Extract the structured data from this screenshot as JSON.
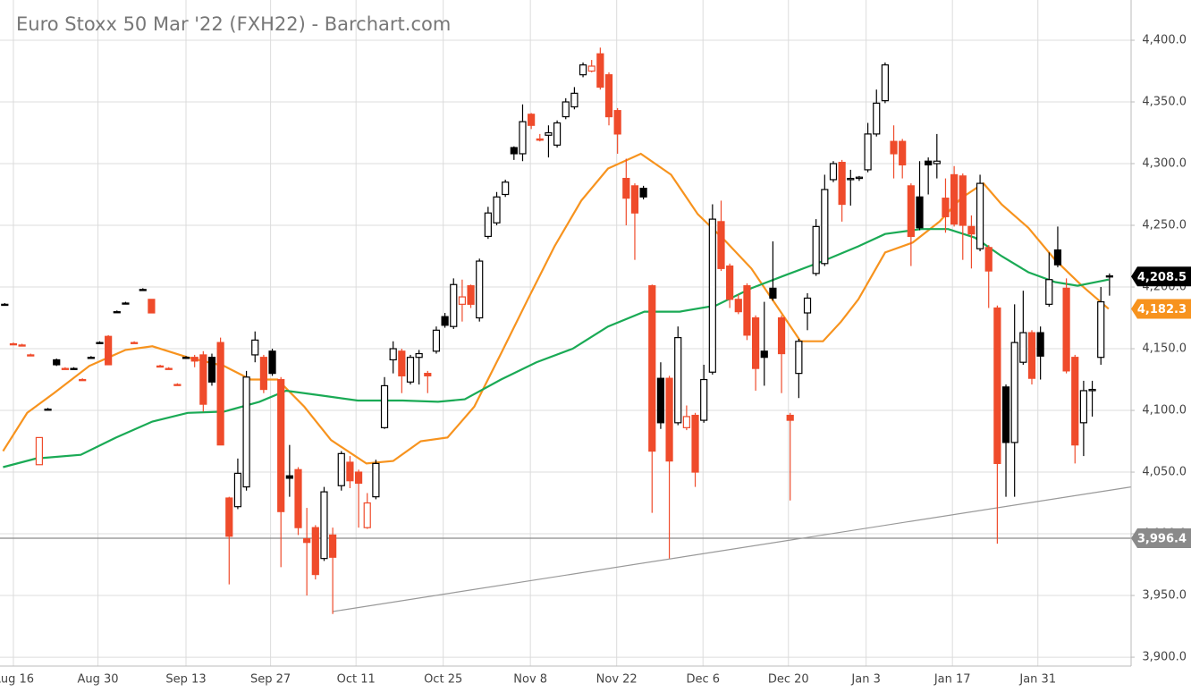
{
  "chart_data": {
    "type": "candlestick",
    "title": "Euro Stoxx 50 Mar '22 (FXH22) - Barchart.com",
    "xlim": [
      -1.55,
      129.5
    ],
    "ylim": [
      3892.8,
      4432.6
    ],
    "grid": true,
    "up_color": "#000000",
    "down_color": "#ef4b2b",
    "xticks": [
      {
        "value": 0,
        "label": "Aug 16"
      },
      {
        "value": 9.8,
        "label": "Aug 30"
      },
      {
        "value": 20,
        "label": "Sep 13"
      },
      {
        "value": 29.8,
        "label": "Sep 27"
      },
      {
        "value": 39.7,
        "label": "Oct 11"
      },
      {
        "value": 49.8,
        "label": "Oct 25"
      },
      {
        "value": 59.9,
        "label": "Nov 8"
      },
      {
        "value": 69.9,
        "label": "Nov 22"
      },
      {
        "value": 79.9,
        "label": "Dec 6"
      },
      {
        "value": 89.8,
        "label": "Dec 20"
      },
      {
        "value": 98.8,
        "label": "Jan 3"
      },
      {
        "value": 108.8,
        "label": "Jan 17"
      },
      {
        "value": 118.7,
        "label": "Jan 31"
      }
    ],
    "yticks": [
      {
        "value": 3900,
        "label": "3,900.0"
      },
      {
        "value": 3950,
        "label": "3,950.0"
      },
      {
        "value": 4000,
        "label": "4,000.0"
      },
      {
        "value": 4050,
        "label": "4,050.0"
      },
      {
        "value": 4100,
        "label": "4,100.0"
      },
      {
        "value": 4150,
        "label": "4,150.0"
      },
      {
        "value": 4200,
        "label": "4,200.0"
      },
      {
        "value": 4250,
        "label": "4,250.0"
      },
      {
        "value": 4300,
        "label": "4,300.0"
      },
      {
        "value": 4350,
        "label": "4,350.0"
      },
      {
        "value": 4400,
        "label": "4,400.0"
      }
    ],
    "x": [
      -1,
      0,
      1,
      2,
      3,
      4,
      5,
      6,
      7,
      8,
      9,
      10,
      11,
      12,
      13,
      14,
      15,
      16,
      17,
      18,
      19,
      20,
      21,
      22,
      23,
      24,
      25,
      26,
      27,
      28,
      29,
      30,
      31,
      32,
      33,
      34,
      35,
      36,
      37,
      38,
      39,
      40,
      41,
      42,
      43,
      44,
      45,
      46,
      47,
      48,
      49,
      50,
      51,
      52,
      53,
      54,
      55,
      56,
      57,
      58,
      59,
      60,
      61,
      62,
      63,
      64,
      65,
      66,
      67,
      68,
      69,
      70,
      71,
      72,
      73,
      74,
      75,
      76,
      77,
      78,
      79,
      80,
      81,
      82,
      83,
      84,
      85,
      86,
      87,
      88,
      89,
      90,
      91,
      92,
      93,
      94,
      95,
      96,
      97,
      98,
      99,
      100,
      101,
      102,
      103,
      104,
      105,
      106,
      107,
      108,
      109,
      110,
      111,
      112,
      113,
      114,
      115,
      116,
      117,
      118,
      119,
      120,
      121,
      122,
      123,
      124,
      125,
      126,
      127
    ],
    "open": [
      4186,
      4154,
      4153,
      4145,
      4056,
      4101,
      4141,
      4134,
      4134,
      4125,
      4143,
      4155,
      4160,
      4180,
      4187,
      4155,
      4198,
      4190,
      4136,
      4134,
      4121,
      4143,
      4143,
      4145,
      4143,
      4155,
      4029,
      4022,
      4038,
      4145,
      4143,
      4148,
      4125,
      4047,
      4052,
      3996,
      4005,
      3980,
      3999,
      4039,
      4058,
      4050,
      4005,
      4030,
      4086,
      4141,
      4148,
      4123,
      4143,
      4130,
      4148,
      4176,
      4168,
      4186,
      4201,
      4175,
      4241,
      4252,
      4275,
      4313,
      4308,
      4340,
      4320,
      4323,
      4315,
      4338,
      4346,
      4372,
      4375,
      4389,
      4372,
      4343,
      4288,
      4282,
      4280,
      4201,
      4126,
      4126,
      4090,
      4086,
      4096,
      4092,
      4131,
      4253,
      4217,
      4190,
      4201,
      4175,
      4148,
      4199,
      4175,
      4096,
      4130,
      4179,
      4211,
      4219,
      4287,
      4301,
      4287,
      4288,
      4295,
      4324,
      4351,
      4318,
      4318,
      4282,
      4273,
      4302,
      4300,
      4272,
      4291,
      4290,
      4249,
      4231,
      4232,
      4183,
      4119,
      4074,
      4139,
      4163,
      4163,
      4186,
      4230,
      4199,
      4143,
      4090,
      4116,
      4143,
      4209
    ],
    "high": [
      4187,
      4155,
      4154,
      4146,
      4078,
      4102,
      4142,
      4135,
      4135,
      4126,
      4144,
      4156,
      4161,
      4181,
      4188,
      4156,
      4199,
      4190,
      4137,
      4135,
      4122,
      4144,
      4145,
      4148,
      4146,
      4159,
      4030,
      4061,
      4132,
      4164,
      4145,
      4150,
      4127,
      4072,
      4054,
      4021,
      4007,
      4038,
      4005,
      4067,
      4063,
      4052,
      4033,
      4060,
      4127,
      4156,
      4150,
      4145,
      4149,
      4132,
      4168,
      4179,
      4207,
      4206,
      4202,
      4223,
      4265,
      4277,
      4287,
      4314,
      4348,
      4341,
      4324,
      4331,
      4335,
      4353,
      4362,
      4382,
      4384,
      4394,
      4374,
      4345,
      4304,
      4284,
      4282,
      4202,
      4139,
      4128,
      4168,
      4104,
      4098,
      4137,
      4267,
      4270,
      4219,
      4194,
      4203,
      4177,
      4188,
      4237,
      4177,
      4098,
      4158,
      4195,
      4255,
      4291,
      4302,
      4303,
      4295,
      4290,
      4333,
      4360,
      4382,
      4331,
      4320,
      4284,
      4302,
      4305,
      4324,
      4288,
      4298,
      4292,
      4258,
      4291,
      4234,
      4185,
      4121,
      4186,
      4197,
      4165,
      4168,
      4228,
      4249,
      4207,
      4145,
      4124,
      4124,
      4200,
      4211
    ],
    "low": [
      4185,
      4153,
      4152,
      4144,
      4056,
      4100,
      4136,
      4133,
      4133,
      4124,
      4142,
      4154,
      4137,
      4179,
      4186,
      4154,
      4197,
      4179,
      4135,
      4133,
      4120,
      4142,
      4135,
      4099,
      4120,
      4072,
      3959,
      4020,
      4035,
      4139,
      4114,
      4128,
      3973,
      4030,
      3999,
      3950,
      3963,
      3978,
      3935,
      4035,
      4037,
      4005,
      4004,
      4028,
      4085,
      4130,
      4114,
      4121,
      4121,
      4114,
      4146,
      4167,
      4166,
      4172,
      4183,
      4172,
      4239,
      4250,
      4273,
      4303,
      4302,
      4328,
      4318,
      4305,
      4313,
      4336,
      4344,
      4370,
      4374,
      4360,
      4331,
      4308,
      4250,
      4222,
      4271,
      4017,
      4085,
      3980,
      4088,
      4084,
      4038,
      4090,
      4129,
      4213,
      4183,
      4178,
      4157,
      4116,
      4120,
      4189,
      4114,
      4027,
      4110,
      4165,
      4209,
      4217,
      4285,
      4253,
      4266,
      4286,
      4293,
      4322,
      4349,
      4288,
      4288,
      4217,
      4246,
      4275,
      4288,
      4244,
      4249,
      4222,
      4215,
      4229,
      4183,
      3992,
      4030,
      4030,
      4137,
      4121,
      4125,
      4184,
      4216,
      4130,
      4057,
      4063,
      4095,
      4137,
      4193
    ],
    "close": [
      4186,
      4154,
      4153,
      4145,
      4078,
      4101,
      4137,
      4134,
      4134,
      4125,
      4143,
      4155,
      4137,
      4180,
      4187,
      4155,
      4198,
      4179,
      4136,
      4134,
      4121,
      4143,
      4140,
      4105,
      4123,
      4072,
      3998,
      4049,
      4127,
      4157,
      4117,
      4130,
      4018,
      4045,
      4005,
      3993,
      3967,
      4034,
      3981,
      4065,
      4043,
      4041,
      4025,
      4057,
      4120,
      4150,
      4128,
      4143,
      4146,
      4128,
      4165,
      4169,
      4202,
      4192,
      4186,
      4221,
      4260,
      4273,
      4285,
      4308,
      4334,
      4331,
      4319,
      4325,
      4333,
      4350,
      4357,
      4380,
      4379,
      4362,
      4338,
      4324,
      4272,
      4260,
      4273,
      4067,
      4090,
      4059,
      4159,
      4095,
      4050,
      4125,
      4255,
      4215,
      4190,
      4180,
      4161,
      4134,
      4143,
      4191,
      4146,
      4092,
      4156,
      4191,
      4249,
      4279,
      4300,
      4267,
      4288,
      4289,
      4324,
      4349,
      4380,
      4308,
      4299,
      4241,
      4248,
      4299,
      4302,
      4257,
      4251,
      4250,
      4243,
      4284,
      4213,
      4057,
      4074,
      4155,
      4163,
      4126,
      4144,
      4206,
      4218,
      4132,
      4072,
      4116,
      4117,
      4188,
      4208.5
    ],
    "series": [
      {
        "color": "#f7931e",
        "x": [
          -1.2,
          1.6,
          4.7,
          8.8,
          13,
          16.1,
          20.2,
          24.4,
          27.5,
          30.6,
          33.7,
          36.8,
          40.9,
          44,
          47.2,
          50.3,
          53.4,
          56.5,
          59.6,
          62.7,
          65.8,
          68.9,
          72.7,
          76.2,
          79.3,
          82.4,
          85.5,
          88.6,
          91.2,
          93.8,
          95.9,
          97.9,
          101,
          104.2,
          107.3,
          109.8,
          112.4,
          114.5,
          117.6,
          120.7,
          123.8,
          126.9
        ],
        "values": [
          4067,
          4098,
          4114,
          4136,
          4149,
          4152,
          4143,
          4136,
          4125,
          4125,
          4103,
          4076,
          4057,
          4059,
          4075,
          4078,
          4103,
          4146,
          4190,
          4233,
          4270,
          4296,
          4308,
          4291,
          4259,
          4238,
          4215,
          4183,
          4156,
          4156,
          4172,
          4190,
          4228,
          4236,
          4253,
          4272,
          4284,
          4267,
          4248,
          4222,
          4201,
          4182.3
        ]
      },
      {
        "color": "#1aaa55",
        "x": [
          -1.2,
          2.6,
          7.8,
          11.9,
          16.1,
          20.2,
          24.4,
          28.5,
          31.6,
          35.8,
          39.9,
          45.1,
          49.2,
          52.3,
          56.5,
          60.6,
          64.8,
          68.9,
          73.1,
          77.2,
          81.4,
          85.5,
          89.6,
          93.8,
          97.9,
          101,
          105.2,
          108.3,
          111.4,
          114.5,
          117.6,
          120.7,
          123.3,
          126.9
        ],
        "values": [
          4054,
          4061,
          4064,
          4078,
          4091,
          4098,
          4099,
          4107,
          4116,
          4112,
          4108,
          4108,
          4107,
          4109,
          4125,
          4139,
          4150,
          4168,
          4180,
          4180,
          4185,
          4199,
          4210,
          4221,
          4233,
          4243,
          4247,
          4247,
          4240,
          4225,
          4212,
          4204,
          4201,
          4206
        ]
      }
    ],
    "trendline": {
      "color": "#999999",
      "x": [
        37,
        129.5
      ],
      "values": [
        3937,
        4038
      ]
    },
    "price_labels": [
      {
        "value": 4208.5,
        "label": "4,208.5",
        "color": "#000000"
      },
      {
        "value": 4182.3,
        "label": "4,182.3",
        "color": "#f7931e"
      },
      {
        "value": 3996.4,
        "label": "3,996.4",
        "color": "#8a8a8a",
        "line": true
      }
    ]
  }
}
